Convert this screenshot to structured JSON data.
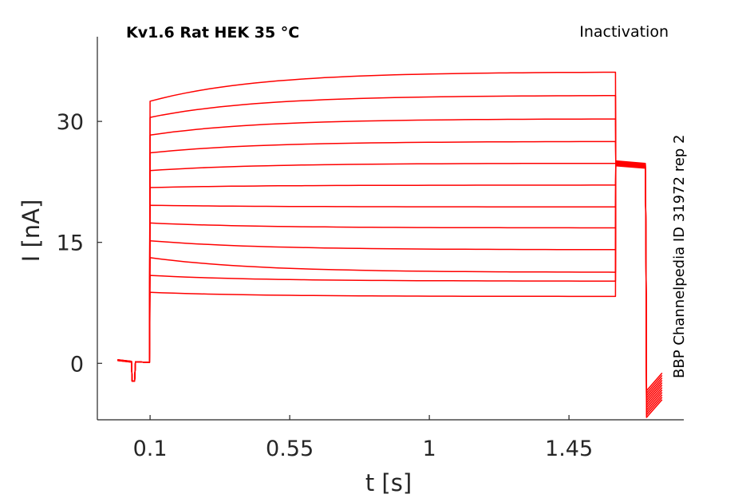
{
  "chart_data": {
    "type": "line",
    "title": "Kv1.6  Rat  HEK  35 °C",
    "subtitle": "Inactivation",
    "side_note": "BBP Channelpedia ID 31972 rep 2",
    "xlabel": "t [s]",
    "ylabel": "I [nA]",
    "xlim": [
      -0.07,
      1.82
    ],
    "ylim": [
      -7,
      40.5
    ],
    "xticks": [
      0.1,
      0.55,
      1,
      1.45
    ],
    "xtick_labels": [
      "0.1",
      "0.55",
      "1",
      "1.45"
    ],
    "yticks": [
      0,
      15,
      30
    ],
    "ytick_labels": [
      "0",
      "15",
      "30"
    ],
    "grid": false,
    "line_color": "#ff0000",
    "sweep_times": {
      "baseline_start": -0.005,
      "step_on": 0.1,
      "step_off": 1.6,
      "tail_end": 1.7
    },
    "series": [
      {
        "peak": 32.5,
        "end": 36.1,
        "tail": 24.5,
        "tail_end": -1.2
      },
      {
        "peak": 30.5,
        "end": 33.2,
        "tail": 24.6,
        "tail_end": -1.5
      },
      {
        "peak": 28.3,
        "end": 30.3,
        "tail": 24.6,
        "tail_end": -1.8
      },
      {
        "peak": 26.1,
        "end": 27.5,
        "tail": 24.7,
        "tail_end": -2.1
      },
      {
        "peak": 23.9,
        "end": 24.8,
        "tail": 24.7,
        "tail_end": -2.4
      },
      {
        "peak": 21.8,
        "end": 22.1,
        "tail": 24.8,
        "tail_end": -2.7
      },
      {
        "peak": 19.6,
        "end": 19.4,
        "tail": 24.8,
        "tail_end": -3.0
      },
      {
        "peak": 17.4,
        "end": 16.8,
        "tail": 24.9,
        "tail_end": -3.3
      },
      {
        "peak": 15.2,
        "end": 14.1,
        "tail": 24.9,
        "tail_end": -3.6
      },
      {
        "peak": 13.1,
        "end": 11.3,
        "tail": 25.0,
        "tail_end": -3.9
      },
      {
        "peak": 10.9,
        "end": 10.2,
        "tail": 25.0,
        "tail_end": -4.2
      },
      {
        "peak": 8.8,
        "end": 8.3,
        "tail": 25.1,
        "tail_end": -4.5
      }
    ]
  }
}
